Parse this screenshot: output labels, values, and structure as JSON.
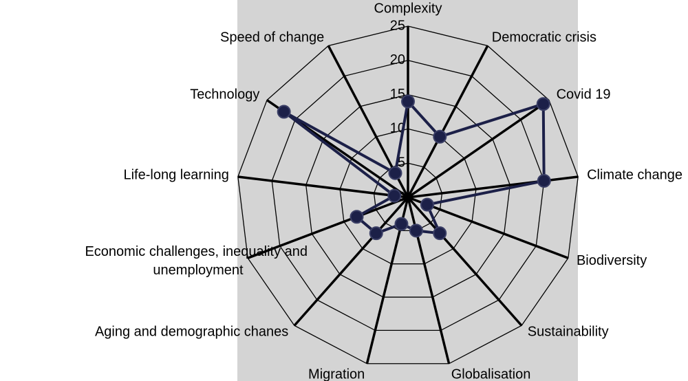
{
  "chart_data": {
    "type": "radar",
    "categories": [
      "Complexity",
      "Democratic crisis",
      "Covid 19",
      "Climate change",
      "Biodiversity",
      "Sustainability",
      "Globalisation",
      "Migration",
      "Aging and demographic chanes",
      "Economic challenges, inequality and unemployment",
      "Life-long learning",
      "Technology",
      "Speed of change"
    ],
    "values": [
      14,
      10,
      24,
      20,
      3,
      7,
      5,
      4,
      7,
      8,
      2,
      22,
      4
    ],
    "color": "#1c2048",
    "ylim": [
      0,
      25
    ],
    "yticks": [
      0,
      5,
      10,
      15,
      20,
      25
    ],
    "grid": true
  }
}
